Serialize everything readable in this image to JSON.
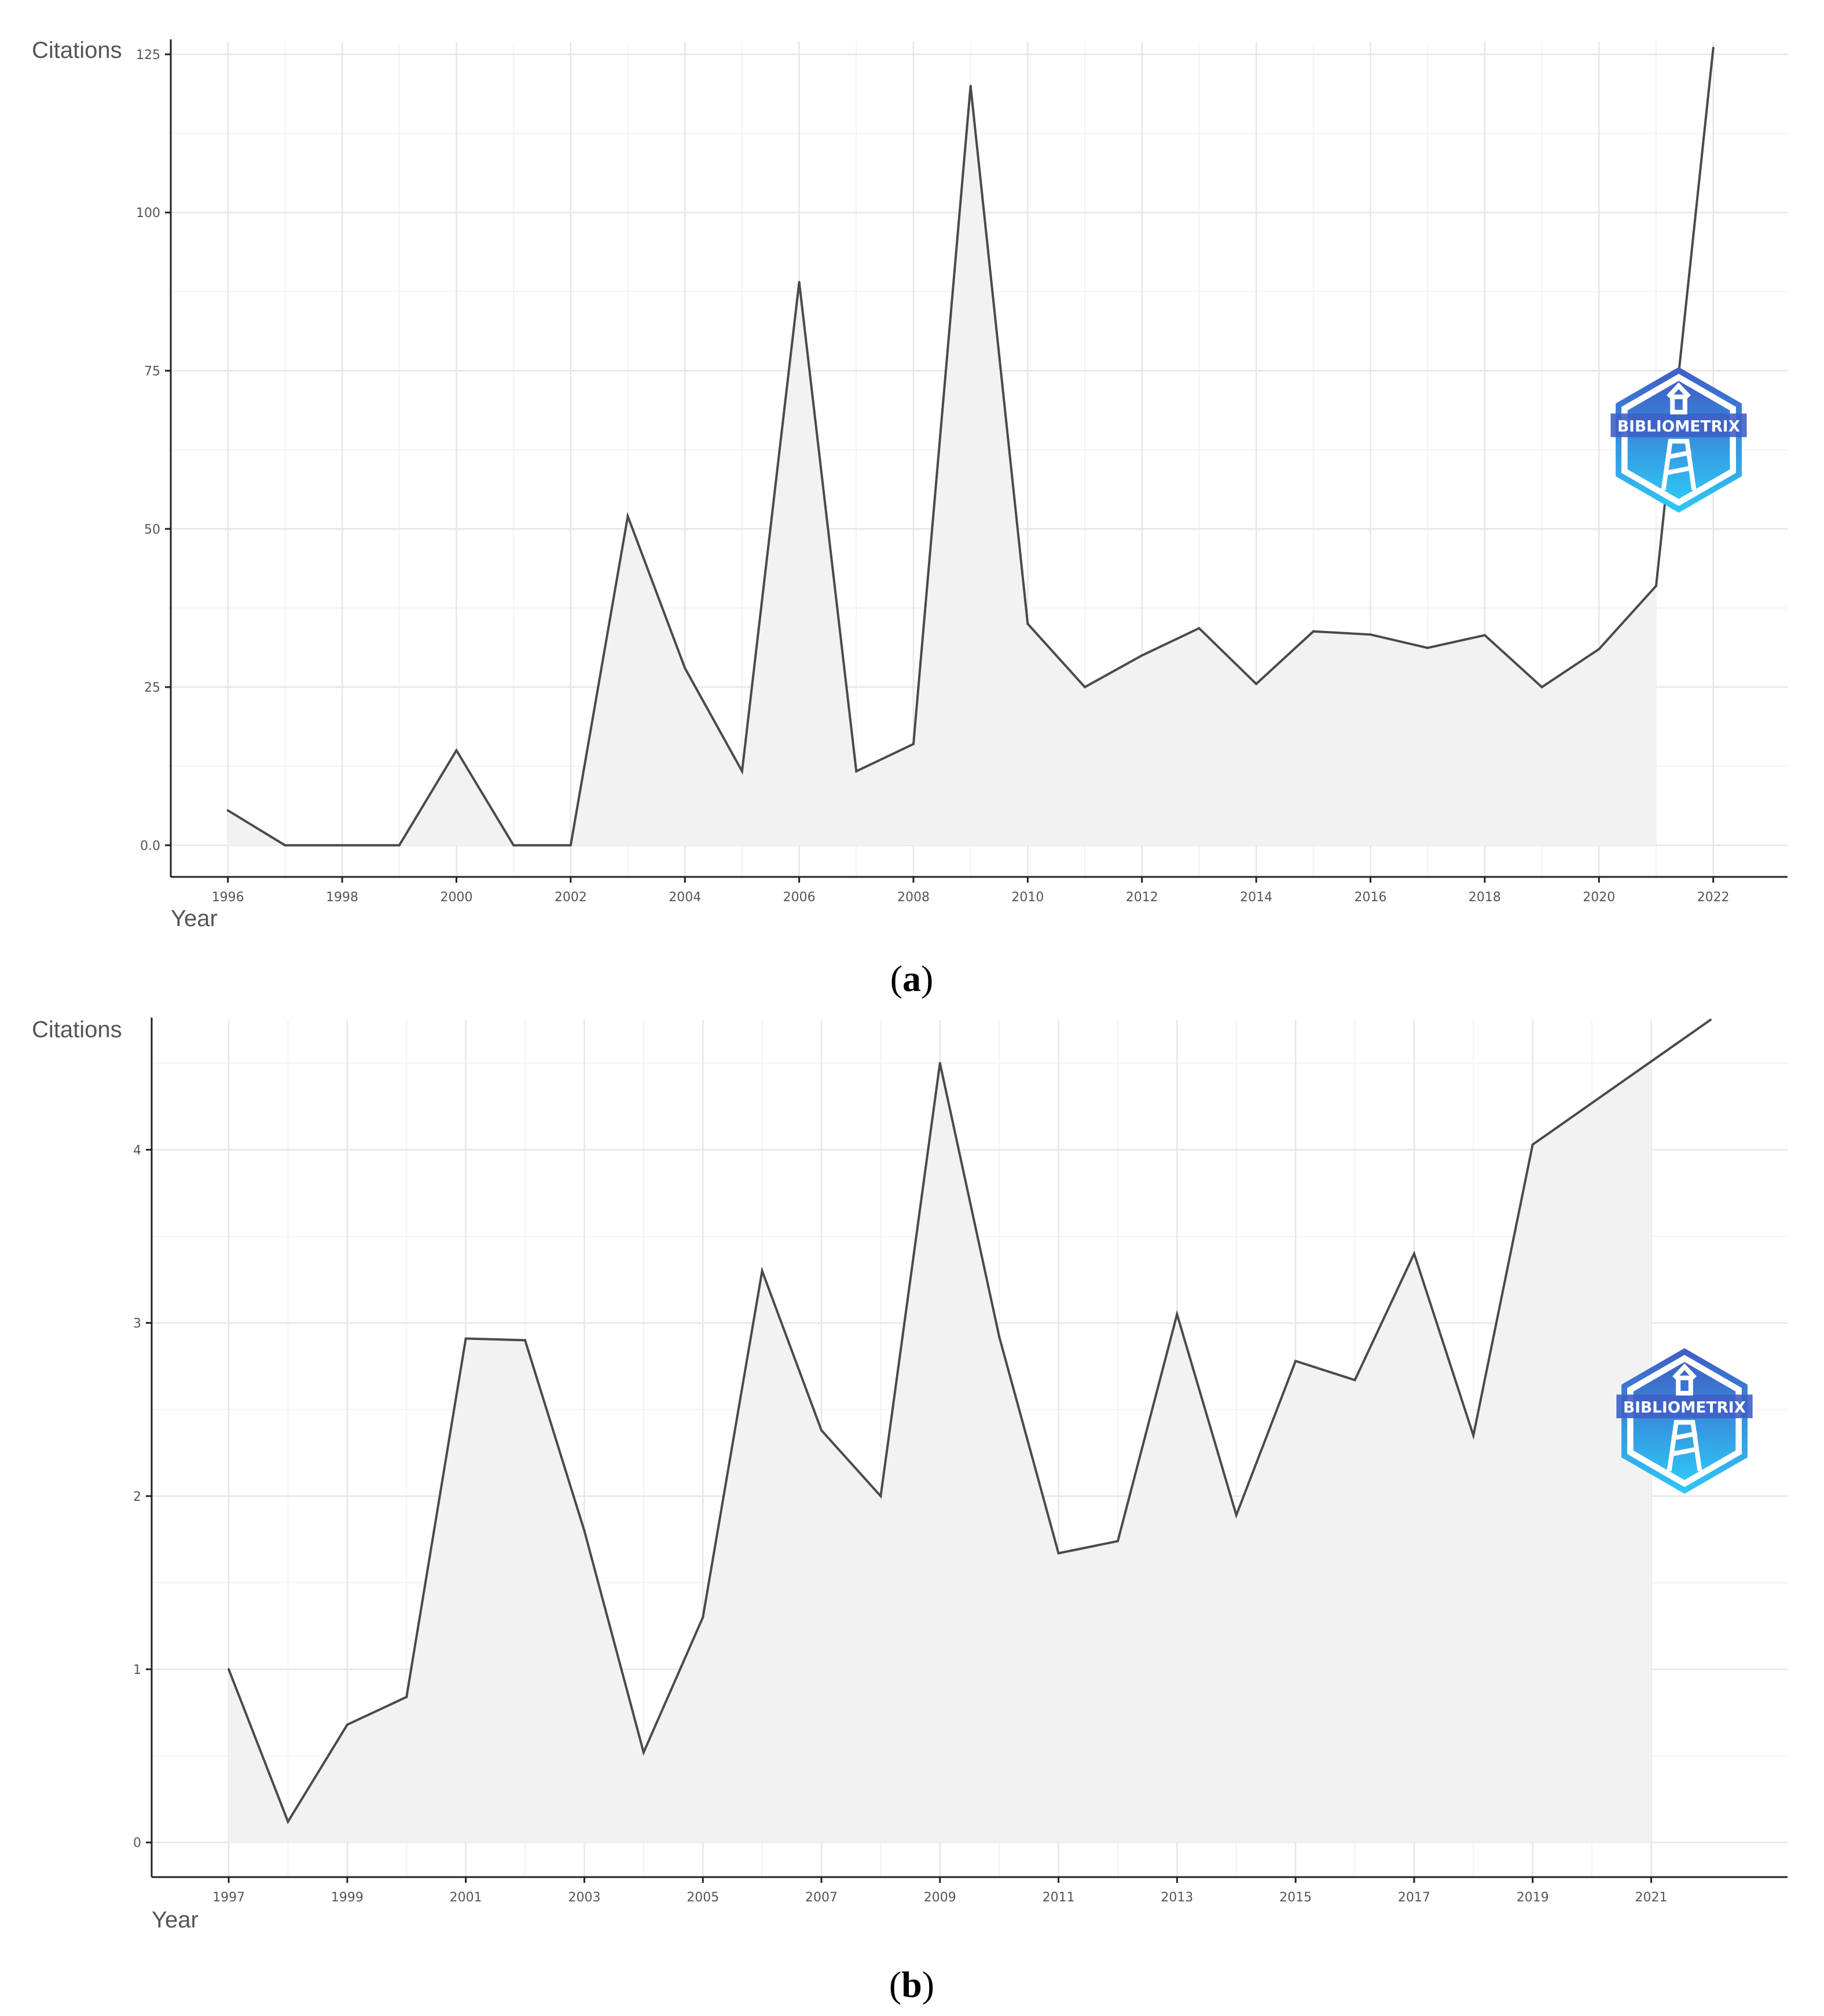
{
  "colors": {
    "line": "#4a4a4a",
    "area": "#f2f2f2",
    "grid_major": "#e6e6e6",
    "grid_minor": "#f3f3f3",
    "axis": "#222222",
    "logo_dark": "#3f5fc6",
    "logo_light": "#2fc5f5"
  },
  "logo": {
    "text": "BIBLIOMETRIX",
    "icon": "lighthouse-hexagon-icon"
  },
  "chart_data": [
    {
      "type": "area",
      "caption_label": "a",
      "xlabel": "Year",
      "ylabel": "Citations",
      "xlim": [
        1995,
        2023.3
      ],
      "ylim": [
        -5,
        127
      ],
      "xticks": [
        1996,
        1998,
        2000,
        2002,
        2004,
        2006,
        2008,
        2010,
        2012,
        2014,
        2016,
        2018,
        2020,
        2022
      ],
      "xtick_labels": [
        "1996",
        "1998",
        "2000",
        "2002",
        "2004",
        "2006",
        "2008",
        "2010",
        "2012",
        "2014",
        "2016",
        "2018",
        "2020",
        "2022"
      ],
      "yticks": [
        0,
        25,
        50,
        75,
        100,
        125
      ],
      "ytick_labels": [
        "0.0",
        "25",
        "50",
        "75",
        "100",
        "125"
      ],
      "grid": true,
      "x": [
        1996,
        1997,
        1998,
        1999,
        2000,
        2001,
        2002,
        2003,
        2004,
        2005,
        2006,
        2007,
        2008,
        2009,
        2010,
        2011,
        2012,
        2013,
        2014,
        2015,
        2016,
        2017,
        2018,
        2019,
        2020,
        2021,
        2022
      ],
      "y": [
        5.5,
        0,
        0,
        0,
        15,
        0,
        0,
        52,
        28,
        11.7,
        89,
        11.7,
        16,
        120,
        35,
        25,
        30,
        34.3,
        25.5,
        33.8,
        33.3,
        31.2,
        33.2,
        25,
        31,
        41,
        126
      ],
      "area_end_x": 2021
    },
    {
      "type": "area",
      "caption_label": "b",
      "xlabel": "Year",
      "ylabel": "Citations",
      "xlim": [
        1995.7,
        2023.3
      ],
      "ylim": [
        -0.2,
        4.75
      ],
      "xticks": [
        1997,
        1999,
        2001,
        2003,
        2005,
        2007,
        2009,
        2011,
        2013,
        2015,
        2017,
        2019,
        2021
      ],
      "xtick_labels": [
        "1997",
        "1999",
        "2001",
        "2003",
        "2005",
        "2007",
        "2009",
        "2011",
        "2013",
        "2015",
        "2017",
        "2019",
        "2021"
      ],
      "yticks": [
        0,
        1,
        2,
        3,
        4
      ],
      "ytick_labels": [
        "0",
        "1",
        "2",
        "3",
        "4"
      ],
      "grid": true,
      "x": [
        1997,
        1998,
        1999,
        2000,
        2001,
        2002,
        2003,
        2004,
        2005,
        2006,
        2007,
        2008,
        2009,
        2010,
        2011,
        2012,
        2013,
        2014,
        2015,
        2016,
        2017,
        2018,
        2019,
        2020,
        2021,
        2022
      ],
      "y": [
        1.0,
        0.12,
        0.68,
        0.84,
        2.91,
        2.9,
        1.8,
        0.52,
        1.3,
        3.3,
        2.38,
        2.0,
        4.5,
        2.92,
        1.67,
        1.74,
        3.05,
        1.89,
        2.78,
        2.67,
        3.4,
        2.35,
        4.03,
        4.27,
        4.51,
        4.75
      ],
      "area_end_x": 2021
    }
  ]
}
